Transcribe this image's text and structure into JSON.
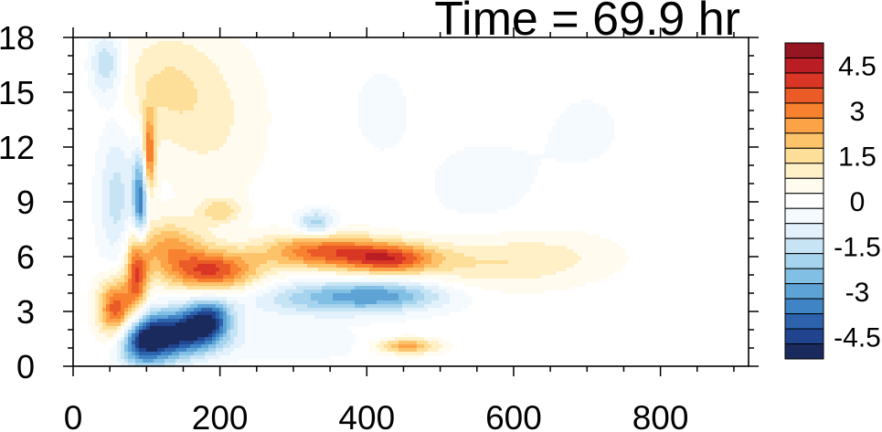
{
  "chart_data": {
    "type": "heatmap",
    "title": "Time = 69.9 hr",
    "xlabel": "",
    "ylabel": "",
    "xlim": [
      0,
      920
    ],
    "ylim": [
      0,
      18
    ],
    "x_ticks": [
      0,
      200,
      400,
      600,
      800
    ],
    "y_ticks": [
      0,
      3,
      6,
      9,
      12,
      15,
      18
    ],
    "colorbar": {
      "tick_labels": [
        "4.5",
        "3",
        "1.5",
        "0",
        "-1.5",
        "-3",
        "-4.5"
      ],
      "tick_values": [
        4.5,
        3,
        1.5,
        0,
        -1.5,
        -3,
        -4.5
      ],
      "levels": [
        -5.25,
        -4.75,
        -4.25,
        -3.75,
        -3.25,
        -2.75,
        -2.25,
        -1.75,
        -1.25,
        -0.75,
        -0.25,
        0.25,
        0.75,
        1.25,
        1.75,
        2.25,
        2.75,
        3.25,
        3.75,
        4.25,
        4.75,
        5.25
      ],
      "colors": [
        "#1a2a5c",
        "#21448f",
        "#2d62ad",
        "#3f84c4",
        "#5ea3d5",
        "#82bfe4",
        "#a6d4ee",
        "#c7e4f5",
        "#e2f1fb",
        "#f4fafe",
        "#ffffff",
        "#fffbee",
        "#fff0c8",
        "#fedf9a",
        "#fdc36a",
        "#fca347",
        "#f7812e",
        "#ea5b27",
        "#d93626",
        "#bb1d25",
        "#951521"
      ]
    },
    "features": [
      {
        "x": 95,
        "y": 1.4,
        "sx": 28,
        "sy": 1.0,
        "v": -4.6
      },
      {
        "x": 150,
        "y": 1.8,
        "sx": 35,
        "sy": 0.9,
        "v": -4.2
      },
      {
        "x": 185,
        "y": 2.6,
        "sx": 22,
        "sy": 0.8,
        "v": -3.6
      },
      {
        "x": 92,
        "y": 9.0,
        "sx": 7,
        "sy": 2.0,
        "v": -3.8
      },
      {
        "x": 60,
        "y": 3.0,
        "sx": 18,
        "sy": 1.3,
        "v": 4.2
      },
      {
        "x": 88,
        "y": 5.3,
        "sx": 10,
        "sy": 1.5,
        "v": 3.6
      },
      {
        "x": 103,
        "y": 11.5,
        "sx": 6,
        "sy": 1.6,
        "v": 3.4
      },
      {
        "x": 190,
        "y": 5.2,
        "sx": 45,
        "sy": 0.8,
        "v": 3.7
      },
      {
        "x": 130,
        "y": 6.6,
        "sx": 35,
        "sy": 1.0,
        "v": 2.2
      },
      {
        "x": 335,
        "y": 6.3,
        "sx": 55,
        "sy": 0.7,
        "v": 3.2
      },
      {
        "x": 430,
        "y": 5.9,
        "sx": 45,
        "sy": 0.6,
        "v": 3.4
      },
      {
        "x": 540,
        "y": 5.6,
        "sx": 80,
        "sy": 1.0,
        "v": 1.0
      },
      {
        "x": 650,
        "y": 6.0,
        "sx": 70,
        "sy": 1.0,
        "v": 0.7
      },
      {
        "x": 330,
        "y": 3.7,
        "sx": 70,
        "sy": 0.7,
        "v": -1.8
      },
      {
        "x": 430,
        "y": 3.9,
        "sx": 60,
        "sy": 0.6,
        "v": -2.5
      },
      {
        "x": 330,
        "y": 7.8,
        "sx": 18,
        "sy": 0.5,
        "v": -2.2
      },
      {
        "x": 120,
        "y": 15.5,
        "sx": 45,
        "sy": 2.2,
        "v": 1.1
      },
      {
        "x": 190,
        "y": 13.5,
        "sx": 50,
        "sy": 3.0,
        "v": 0.8
      },
      {
        "x": 45,
        "y": 16.5,
        "sx": 15,
        "sy": 1.2,
        "v": -1.8
      },
      {
        "x": 60,
        "y": 9.0,
        "sx": 18,
        "sy": 3.0,
        "v": -1.5
      },
      {
        "x": 200,
        "y": 8.5,
        "sx": 20,
        "sy": 0.5,
        "v": 1.5
      },
      {
        "x": 455,
        "y": 1.1,
        "sx": 30,
        "sy": 0.3,
        "v": 2.5
      },
      {
        "x": 300,
        "y": 1.2,
        "sx": 80,
        "sy": 0.6,
        "v": -0.6
      },
      {
        "x": 420,
        "y": 14.0,
        "sx": 25,
        "sy": 1.5,
        "v": -0.6
      },
      {
        "x": 550,
        "y": 10.0,
        "sx": 60,
        "sy": 2.0,
        "v": -0.4
      },
      {
        "x": 700,
        "y": 13.0,
        "sx": 60,
        "sy": 2.5,
        "v": -0.3
      }
    ]
  }
}
